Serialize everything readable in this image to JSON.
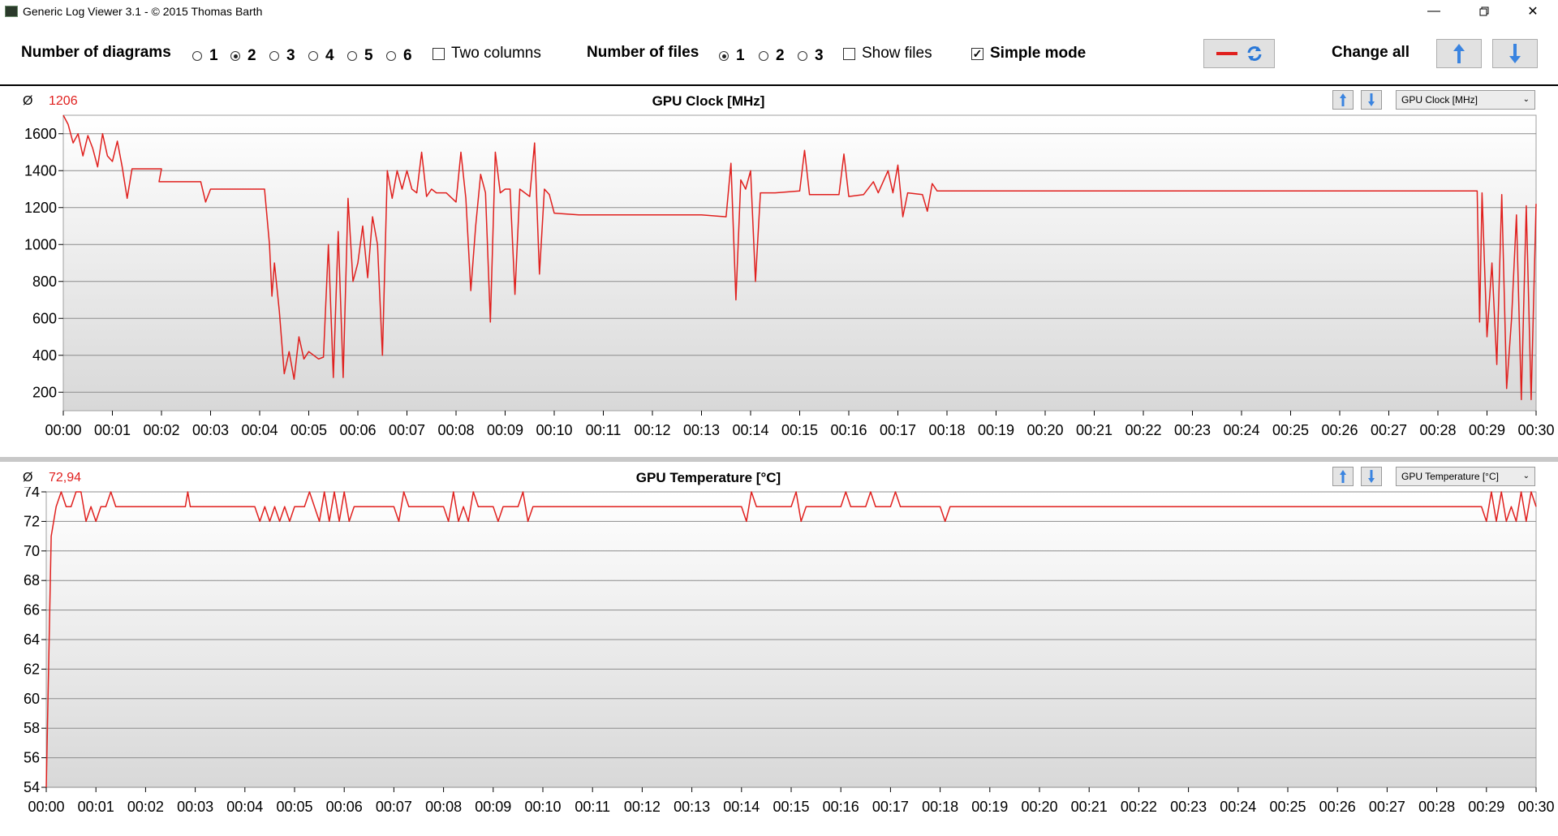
{
  "window": {
    "title": "Generic Log Viewer 3.1 - © 2015 Thomas Barth"
  },
  "toolbar": {
    "diagrams_label": "Number of diagrams",
    "diagram_options": [
      "1",
      "2",
      "3",
      "4",
      "5",
      "6"
    ],
    "diagram_selected": "2",
    "two_columns_label": "Two columns",
    "two_columns_checked": false,
    "files_label": "Number of files",
    "file_options": [
      "1",
      "2",
      "3"
    ],
    "file_selected": "1",
    "show_files_label": "Show files",
    "show_files_checked": false,
    "simple_mode_label": "Simple mode",
    "simple_mode_checked": true,
    "change_all_label": "Change all",
    "line_color": "#e0201e",
    "icons": [
      "red-line-icon",
      "refresh-icon",
      "arrow-up-icon",
      "arrow-down-icon"
    ]
  },
  "panels": [
    {
      "avg_symbol": "Ø",
      "avg_value": "1206",
      "title": "GPU Clock [MHz]",
      "select_value": "GPU Clock [MHz]",
      "chart_data": {
        "type": "line",
        "title": "GPU Clock [MHz]",
        "x_unit": "mm:ss",
        "xlim": [
          0,
          30
        ],
        "ylim": [
          100,
          1700
        ],
        "yticks": [
          200,
          400,
          600,
          800,
          1000,
          1200,
          1400,
          1600
        ],
        "xticks": [
          "00:00",
          "00:01",
          "00:02",
          "00:03",
          "00:04",
          "00:05",
          "00:06",
          "00:07",
          "00:08",
          "00:09",
          "00:10",
          "00:11",
          "00:12",
          "00:13",
          "00:14",
          "00:15",
          "00:16",
          "00:17",
          "00:18",
          "00:19",
          "00:20",
          "00:21",
          "00:22",
          "00:23",
          "00:24",
          "00:25",
          "00:26",
          "00:27",
          "00:28",
          "00:29",
          "00:30"
        ],
        "series": [
          {
            "color": "#e0201e",
            "points": [
              [
                0,
                1700
              ],
              [
                0.1,
                1650
              ],
              [
                0.2,
                1550
              ],
              [
                0.3,
                1600
              ],
              [
                0.4,
                1480
              ],
              [
                0.5,
                1590
              ],
              [
                0.6,
                1520
              ],
              [
                0.7,
                1420
              ],
              [
                0.8,
                1600
              ],
              [
                0.9,
                1480
              ],
              [
                1.0,
                1450
              ],
              [
                1.1,
                1560
              ],
              [
                1.2,
                1420
              ],
              [
                1.3,
                1250
              ],
              [
                1.4,
                1410
              ],
              [
                2.0,
                1410
              ],
              [
                1.95,
                1340
              ],
              [
                2.8,
                1340
              ],
              [
                2.9,
                1230
              ],
              [
                3.0,
                1300
              ],
              [
                4.0,
                1300
              ],
              [
                4.1,
                1300
              ],
              [
                4.2,
                1000
              ],
              [
                4.25,
                720
              ],
              [
                4.3,
                900
              ],
              [
                4.4,
                640
              ],
              [
                4.5,
                300
              ],
              [
                4.6,
                420
              ],
              [
                4.7,
                270
              ],
              [
                4.8,
                500
              ],
              [
                4.9,
                380
              ],
              [
                5.0,
                420
              ],
              [
                5.2,
                380
              ],
              [
                5.3,
                390
              ],
              [
                5.4,
                1000
              ],
              [
                5.5,
                280
              ],
              [
                5.6,
                1070
              ],
              [
                5.7,
                280
              ],
              [
                5.8,
                1250
              ],
              [
                5.9,
                800
              ],
              [
                6.0,
                900
              ],
              [
                6.1,
                1100
              ],
              [
                6.2,
                820
              ],
              [
                6.3,
                1150
              ],
              [
                6.4,
                1000
              ],
              [
                6.5,
                400
              ],
              [
                6.6,
                1400
              ],
              [
                6.7,
                1250
              ],
              [
                6.8,
                1400
              ],
              [
                6.9,
                1300
              ],
              [
                7.0,
                1400
              ],
              [
                7.1,
                1300
              ],
              [
                7.2,
                1280
              ],
              [
                7.3,
                1500
              ],
              [
                7.4,
                1260
              ],
              [
                7.5,
                1300
              ],
              [
                7.6,
                1280
              ],
              [
                7.8,
                1280
              ],
              [
                8.0,
                1230
              ],
              [
                8.1,
                1500
              ],
              [
                8.2,
                1250
              ],
              [
                8.3,
                750
              ],
              [
                8.4,
                1100
              ],
              [
                8.5,
                1380
              ],
              [
                8.6,
                1280
              ],
              [
                8.7,
                580
              ],
              [
                8.8,
                1500
              ],
              [
                8.9,
                1280
              ],
              [
                9.0,
                1300
              ],
              [
                9.1,
                1300
              ],
              [
                9.2,
                730
              ],
              [
                9.3,
                1300
              ],
              [
                9.5,
                1260
              ],
              [
                9.6,
                1550
              ],
              [
                9.7,
                840
              ],
              [
                9.8,
                1300
              ],
              [
                9.9,
                1270
              ],
              [
                10.0,
                1170
              ],
              [
                10.5,
                1160
              ],
              [
                11.0,
                1160
              ],
              [
                12.0,
                1160
              ],
              [
                13.0,
                1160
              ],
              [
                13.5,
                1150
              ],
              [
                13.6,
                1440
              ],
              [
                13.7,
                700
              ],
              [
                13.8,
                1350
              ],
              [
                13.9,
                1300
              ],
              [
                14.0,
                1400
              ],
              [
                14.1,
                800
              ],
              [
                14.2,
                1280
              ],
              [
                14.5,
                1280
              ],
              [
                15.0,
                1290
              ],
              [
                15.1,
                1510
              ],
              [
                15.2,
                1270
              ],
              [
                15.5,
                1270
              ],
              [
                15.8,
                1270
              ],
              [
                15.9,
                1490
              ],
              [
                16.0,
                1260
              ],
              [
                16.3,
                1270
              ],
              [
                16.5,
                1340
              ],
              [
                16.6,
                1280
              ],
              [
                16.8,
                1400
              ],
              [
                16.9,
                1280
              ],
              [
                17.0,
                1430
              ],
              [
                17.1,
                1150
              ],
              [
                17.2,
                1280
              ],
              [
                17.5,
                1270
              ],
              [
                17.6,
                1180
              ],
              [
                17.7,
                1330
              ],
              [
                17.8,
                1290
              ],
              [
                18.0,
                1290
              ],
              [
                20.0,
                1290
              ],
              [
                25.0,
                1290
              ],
              [
                28.8,
                1290
              ],
              [
                28.85,
                580
              ],
              [
                28.9,
                1280
              ],
              [
                29.0,
                500
              ],
              [
                29.1,
                900
              ],
              [
                29.2,
                350
              ],
              [
                29.3,
                1270
              ],
              [
                29.4,
                220
              ],
              [
                29.5,
                600
              ],
              [
                29.6,
                1160
              ],
              [
                29.7,
                160
              ],
              [
                29.8,
                1210
              ],
              [
                29.9,
                160
              ],
              [
                30.0,
                1220
              ]
            ]
          }
        ]
      }
    },
    {
      "avg_symbol": "Ø",
      "avg_value": "72,94",
      "title": "GPU Temperature [°C]",
      "select_value": "GPU Temperature [°C]",
      "chart_data": {
        "type": "line",
        "title": "GPU Temperature [°C]",
        "x_unit": "mm:ss",
        "xlim": [
          0,
          30
        ],
        "ylim": [
          54,
          74
        ],
        "yticks": [
          54,
          56,
          58,
          60,
          62,
          64,
          66,
          68,
          70,
          72,
          74
        ],
        "xticks": [
          "00:00",
          "00:01",
          "00:02",
          "00:03",
          "00:04",
          "00:05",
          "00:06",
          "00:07",
          "00:08",
          "00:09",
          "00:10",
          "00:11",
          "00:12",
          "00:13",
          "00:14",
          "00:15",
          "00:16",
          "00:17",
          "00:18",
          "00:19",
          "00:20",
          "00:21",
          "00:22",
          "00:23",
          "00:24",
          "00:25",
          "00:26",
          "00:27",
          "00:28",
          "00:29",
          "00:30"
        ],
        "series": [
          {
            "color": "#e0201e",
            "points": [
              [
                0,
                54
              ],
              [
                0.1,
                71
              ],
              [
                0.2,
                73
              ],
              [
                0.3,
                74
              ],
              [
                0.4,
                73
              ],
              [
                0.5,
                73
              ],
              [
                0.6,
                74
              ],
              [
                0.7,
                74
              ],
              [
                0.8,
                72
              ],
              [
                0.9,
                73
              ],
              [
                1.0,
                72
              ],
              [
                1.1,
                73
              ],
              [
                1.2,
                73
              ],
              [
                1.3,
                74
              ],
              [
                1.4,
                73
              ],
              [
                2.8,
                73
              ],
              [
                2.85,
                74
              ],
              [
                2.9,
                73
              ],
              [
                4.2,
                73
              ],
              [
                4.3,
                72
              ],
              [
                4.4,
                73
              ],
              [
                4.5,
                72
              ],
              [
                4.6,
                73
              ],
              [
                4.7,
                72
              ],
              [
                4.8,
                73
              ],
              [
                4.9,
                72
              ],
              [
                5.0,
                73
              ],
              [
                5.2,
                73
              ],
              [
                5.3,
                74
              ],
              [
                5.4,
                73
              ],
              [
                5.5,
                72
              ],
              [
                5.6,
                74
              ],
              [
                5.7,
                72
              ],
              [
                5.8,
                74
              ],
              [
                5.9,
                72
              ],
              [
                6.0,
                74
              ],
              [
                6.1,
                72
              ],
              [
                6.2,
                73
              ],
              [
                7.0,
                73
              ],
              [
                7.1,
                72
              ],
              [
                7.2,
                74
              ],
              [
                7.3,
                73
              ],
              [
                7.5,
                73
              ],
              [
                8.0,
                73
              ],
              [
                8.1,
                72
              ],
              [
                8.2,
                74
              ],
              [
                8.3,
                72
              ],
              [
                8.4,
                73
              ],
              [
                8.5,
                72
              ],
              [
                8.6,
                74
              ],
              [
                8.7,
                73
              ],
              [
                9.0,
                73
              ],
              [
                9.1,
                72
              ],
              [
                9.2,
                73
              ],
              [
                9.5,
                73
              ],
              [
                9.6,
                74
              ],
              [
                9.7,
                72
              ],
              [
                9.8,
                73
              ],
              [
                14.0,
                73
              ],
              [
                14.1,
                72
              ],
              [
                14.2,
                74
              ],
              [
                14.3,
                73
              ],
              [
                15.0,
                73
              ],
              [
                15.1,
                74
              ],
              [
                15.2,
                72
              ],
              [
                15.3,
                73
              ],
              [
                16.0,
                73
              ],
              [
                16.1,
                74
              ],
              [
                16.2,
                73
              ],
              [
                16.5,
                73
              ],
              [
                16.6,
                74
              ],
              [
                16.7,
                73
              ],
              [
                17.0,
                73
              ],
              [
                17.1,
                74
              ],
              [
                17.2,
                73
              ],
              [
                18.0,
                73
              ],
              [
                18.1,
                72
              ],
              [
                18.2,
                73
              ],
              [
                20.0,
                73
              ],
              [
                25.0,
                73
              ],
              [
                28.9,
                73
              ],
              [
                29.0,
                72
              ],
              [
                29.1,
                74
              ],
              [
                29.2,
                72
              ],
              [
                29.3,
                74
              ],
              [
                29.4,
                72
              ],
              [
                29.5,
                73
              ],
              [
                29.6,
                72
              ],
              [
                29.7,
                74
              ],
              [
                29.8,
                72
              ],
              [
                29.9,
                74
              ],
              [
                30.0,
                73
              ]
            ]
          }
        ]
      }
    }
  ]
}
